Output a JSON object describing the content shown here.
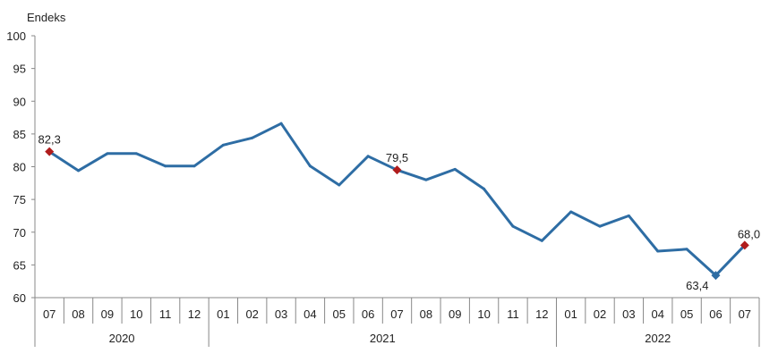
{
  "chart_data": {
    "type": "line",
    "title": "",
    "ylabel": "Endeks",
    "xlabel": "",
    "ylim": [
      60,
      100
    ],
    "yticks": [
      60,
      65,
      70,
      75,
      80,
      85,
      90,
      95,
      100
    ],
    "grid": false,
    "categories": [
      "07",
      "08",
      "09",
      "10",
      "11",
      "12",
      "01",
      "02",
      "03",
      "04",
      "05",
      "06",
      "07",
      "08",
      "09",
      "10",
      "11",
      "12",
      "01",
      "02",
      "03",
      "04",
      "05",
      "06",
      "07"
    ],
    "years": [
      {
        "label": "2020",
        "count": 6
      },
      {
        "label": "2021",
        "count": 12
      },
      {
        "label": "2022",
        "count": 7
      }
    ],
    "series": [
      {
        "name": "Endeks",
        "color": "#2e6da4",
        "values": [
          82.3,
          79.4,
          82.0,
          82.0,
          80.1,
          80.1,
          83.3,
          84.4,
          86.6,
          80.1,
          77.2,
          81.6,
          79.5,
          78.0,
          79.6,
          76.6,
          70.9,
          68.7,
          73.1,
          70.9,
          72.5,
          67.1,
          67.4,
          63.4,
          68.0
        ]
      }
    ],
    "annotations": [
      {
        "index": 0,
        "label": "82,3",
        "marker_color": "#b01c1c"
      },
      {
        "index": 12,
        "label": "79,5",
        "marker_color": "#b01c1c"
      },
      {
        "index": 23,
        "label": "63,4",
        "marker_color": "#2e6da4"
      },
      {
        "index": 24,
        "label": "68,0",
        "marker_color": "#b01c1c"
      }
    ]
  }
}
